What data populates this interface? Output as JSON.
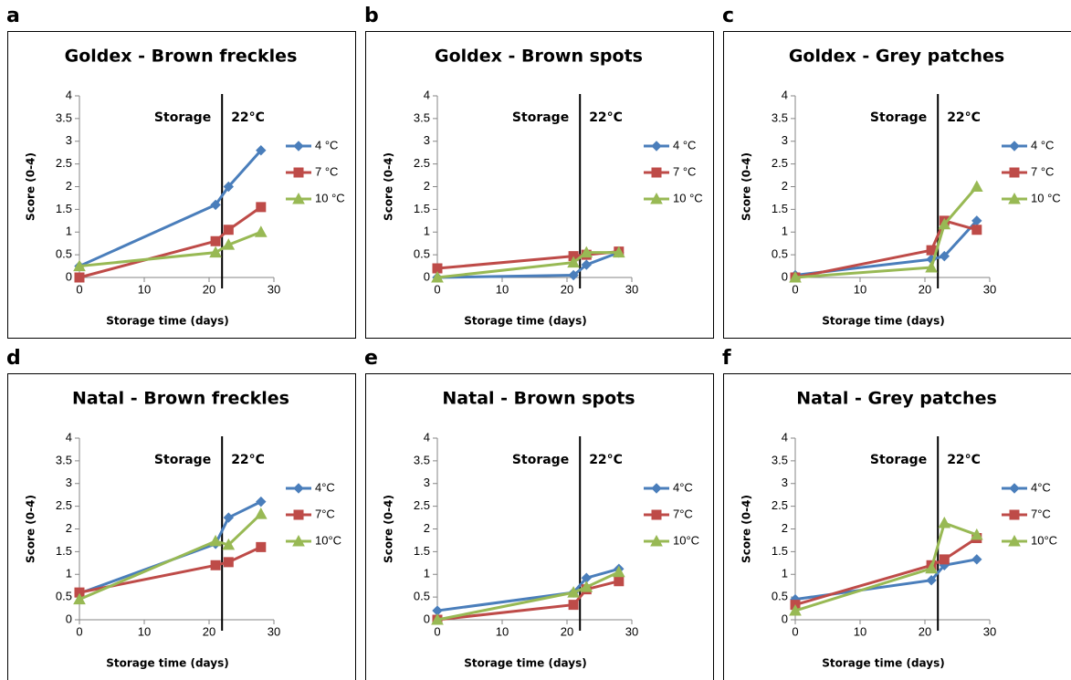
{
  "chart_data": [
    {
      "type": "line",
      "letter": "a",
      "title": "Goldex - Brown freckles",
      "xlabel": "Storage time (days)",
      "ylabel": "Score (0-4)",
      "annotations": [
        "Storage",
        "22°C"
      ],
      "vline_x": 22,
      "x": [
        0,
        21,
        23,
        28
      ],
      "xlim": [
        0,
        30
      ],
      "xticks": [
        0,
        10,
        20,
        30
      ],
      "ylim": [
        0,
        4
      ],
      "yticks": [
        0,
        0.5,
        1,
        1.5,
        2,
        2.5,
        3,
        3.5,
        4
      ],
      "series": [
        {
          "name": "4 °C",
          "color": "#4a7ebb",
          "marker": "diamond",
          "values": [
            0.25,
            1.6,
            2.0,
            2.8
          ]
        },
        {
          "name": "7 °C",
          "color": "#be4b48",
          "marker": "square",
          "values": [
            0,
            0.8,
            1.05,
            1.55
          ]
        },
        {
          "name": "10 °C",
          "color": "#98b954",
          "marker": "triangle",
          "values": [
            0.25,
            0.55,
            0.72,
            1.0
          ]
        }
      ]
    },
    {
      "type": "line",
      "letter": "b",
      "title": "Goldex - Brown spots",
      "xlabel": "Storage time (days)",
      "ylabel": "Score (0-4)",
      "annotations": [
        "Storage",
        "22°C"
      ],
      "vline_x": 22,
      "x": [
        0,
        21,
        23,
        28
      ],
      "xlim": [
        0,
        30
      ],
      "xticks": [
        0,
        10,
        20,
        30
      ],
      "ylim": [
        0,
        4
      ],
      "yticks": [
        0,
        0.5,
        1,
        1.5,
        2,
        2.5,
        3,
        3.5,
        4
      ],
      "series": [
        {
          "name": "4 °C",
          "color": "#4a7ebb",
          "marker": "diamond",
          "values": [
            0,
            0.05,
            0.28,
            0.55
          ]
        },
        {
          "name": "7 °C",
          "color": "#be4b48",
          "marker": "square",
          "values": [
            0.2,
            0.47,
            0.5,
            0.57
          ]
        },
        {
          "name": "10 °C",
          "color": "#98b954",
          "marker": "triangle",
          "values": [
            0,
            0.33,
            0.55,
            0.55
          ]
        }
      ]
    },
    {
      "type": "line",
      "letter": "c",
      "title": "Goldex - Grey patches",
      "xlabel": "Storage time (days)",
      "ylabel": "Score (0-4)",
      "annotations": [
        "Storage",
        "22°C"
      ],
      "vline_x": 22,
      "x": [
        0,
        21,
        23,
        28
      ],
      "xlim": [
        0,
        30
      ],
      "xticks": [
        0,
        10,
        20,
        30
      ],
      "ylim": [
        0,
        4
      ],
      "yticks": [
        0,
        0.5,
        1,
        1.5,
        2,
        2.5,
        3,
        3.5,
        4
      ],
      "series": [
        {
          "name": "4 °C",
          "color": "#4a7ebb",
          "marker": "diamond",
          "values": [
            0.05,
            0.4,
            0.47,
            1.25
          ]
        },
        {
          "name": "7 °C",
          "color": "#be4b48",
          "marker": "square",
          "values": [
            0,
            0.6,
            1.25,
            1.05
          ]
        },
        {
          "name": "10 °C",
          "color": "#98b954",
          "marker": "triangle",
          "values": [
            0,
            0.22,
            1.17,
            2.0
          ]
        }
      ]
    },
    {
      "type": "line",
      "letter": "d",
      "title": "Natal - Brown freckles",
      "xlabel": "Storage time (days)",
      "ylabel": "Score (0-4)",
      "annotations": [
        "Storage",
        "22°C"
      ],
      "vline_x": 22,
      "x": [
        0,
        21,
        23,
        28
      ],
      "xlim": [
        0,
        30
      ],
      "xticks": [
        0,
        10,
        20,
        30
      ],
      "ylim": [
        0,
        4
      ],
      "yticks": [
        0,
        0.5,
        1,
        1.5,
        2,
        2.5,
        3,
        3.5,
        4
      ],
      "series": [
        {
          "name": "4°C",
          "color": "#4a7ebb",
          "marker": "diamond",
          "values": [
            0.58,
            1.67,
            2.25,
            2.6
          ]
        },
        {
          "name": "7°C",
          "color": "#be4b48",
          "marker": "square",
          "values": [
            0.6,
            1.2,
            1.27,
            1.6
          ]
        },
        {
          "name": "10°C",
          "color": "#98b954",
          "marker": "triangle",
          "values": [
            0.45,
            1.73,
            1.65,
            2.33
          ]
        }
      ]
    },
    {
      "type": "line",
      "letter": "e",
      "title": "Natal - Brown spots",
      "xlabel": "Storage time (days)",
      "ylabel": "Score (0-4)",
      "annotations": [
        "Storage",
        "22°C"
      ],
      "vline_x": 22,
      "x": [
        0,
        21,
        23,
        28
      ],
      "xlim": [
        0,
        30
      ],
      "xticks": [
        0,
        10,
        20,
        30
      ],
      "ylim": [
        0,
        4
      ],
      "yticks": [
        0,
        0.5,
        1,
        1.5,
        2,
        2.5,
        3,
        3.5,
        4
      ],
      "series": [
        {
          "name": "4°C",
          "color": "#4a7ebb",
          "marker": "diamond",
          "values": [
            0.2,
            0.6,
            0.92,
            1.12
          ]
        },
        {
          "name": "7°C",
          "color": "#be4b48",
          "marker": "square",
          "values": [
            0,
            0.33,
            0.67,
            0.85
          ]
        },
        {
          "name": "10°C",
          "color": "#98b954",
          "marker": "triangle",
          "values": [
            0,
            0.6,
            0.72,
            1.05
          ]
        }
      ]
    },
    {
      "type": "line",
      "letter": "f",
      "title": "Natal - Grey patches",
      "xlabel": "Storage time (days)",
      "ylabel": "Score (0-4)",
      "annotations": [
        "Storage",
        "22°C"
      ],
      "vline_x": 22,
      "x": [
        0,
        21,
        23,
        28
      ],
      "xlim": [
        0,
        30
      ],
      "xticks": [
        0,
        10,
        20,
        30
      ],
      "ylim": [
        0,
        4
      ],
      "yticks": [
        0,
        0.5,
        1,
        1.5,
        2,
        2.5,
        3,
        3.5,
        4
      ],
      "series": [
        {
          "name": "4°C",
          "color": "#4a7ebb",
          "marker": "diamond",
          "values": [
            0.45,
            0.87,
            1.2,
            1.33
          ]
        },
        {
          "name": "7°C",
          "color": "#be4b48",
          "marker": "square",
          "values": [
            0.33,
            1.2,
            1.33,
            1.8
          ]
        },
        {
          "name": "10°C",
          "color": "#98b954",
          "marker": "triangle",
          "values": [
            0.2,
            1.13,
            2.13,
            1.87
          ]
        }
      ]
    }
  ]
}
